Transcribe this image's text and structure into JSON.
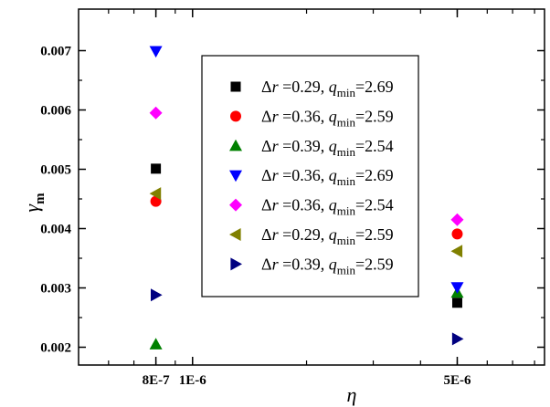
{
  "chart_data": {
    "type": "scatter",
    "xlabel": "η",
    "ylabel": "γ",
    "ylabel_subscript": "m",
    "x_scale": "log",
    "xlim": [
      5e-07,
      8.5e-06
    ],
    "ylim": [
      0.0017,
      0.0077
    ],
    "x_ticks": [
      {
        "value": 8e-07,
        "label": "8E-7"
      },
      {
        "value": 1e-06,
        "label": "1E-6"
      },
      {
        "value": 5e-06,
        "label": "5E-6"
      }
    ],
    "y_ticks": [
      {
        "value": 0.002,
        "label": "0.002"
      },
      {
        "value": 0.003,
        "label": "0.003"
      },
      {
        "value": 0.004,
        "label": "0.004"
      },
      {
        "value": 0.005,
        "label": "0.005"
      },
      {
        "value": 0.006,
        "label": "0.006"
      },
      {
        "value": 0.007,
        "label": "0.007"
      }
    ],
    "legend_position": "upper-center",
    "series": [
      {
        "dr": "0.29",
        "qmin": "2.69",
        "marker": "square",
        "color": "#000000",
        "points": [
          {
            "x": 8e-07,
            "y": 0.00501
          },
          {
            "x": 5e-06,
            "y": 0.00275
          }
        ]
      },
      {
        "dr": "0.36",
        "qmin": "2.59",
        "marker": "circle",
        "color": "#ff0000",
        "points": [
          {
            "x": 8e-07,
            "y": 0.00446
          },
          {
            "x": 5e-06,
            "y": 0.00391
          }
        ]
      },
      {
        "dr": "0.39",
        "qmin": "2.54",
        "marker": "triangle-up",
        "color": "#008000",
        "points": [
          {
            "x": 8e-07,
            "y": 0.00205
          },
          {
            "x": 5e-06,
            "y": 0.00292
          }
        ]
      },
      {
        "dr": "0.36",
        "qmin": "2.69",
        "marker": "triangle-down",
        "color": "#0000ff",
        "points": [
          {
            "x": 8e-07,
            "y": 0.00699
          },
          {
            "x": 5e-06,
            "y": 0.00301
          }
        ]
      },
      {
        "dr": "0.36",
        "qmin": "2.54",
        "marker": "diamond",
        "color": "#ff00ff",
        "points": [
          {
            "x": 8e-07,
            "y": 0.00595
          },
          {
            "x": 5e-06,
            "y": 0.00415
          }
        ]
      },
      {
        "dr": "0.29",
        "qmin": "2.59",
        "marker": "triangle-left",
        "color": "#808000",
        "points": [
          {
            "x": 8e-07,
            "y": 0.00459
          },
          {
            "x": 5e-06,
            "y": 0.00362
          }
        ]
      },
      {
        "dr": "0.39",
        "qmin": "2.59",
        "marker": "triangle-right",
        "color": "#000080",
        "points": [
          {
            "x": 8e-07,
            "y": 0.00288
          },
          {
            "x": 5e-06,
            "y": 0.00214
          }
        ]
      }
    ]
  }
}
